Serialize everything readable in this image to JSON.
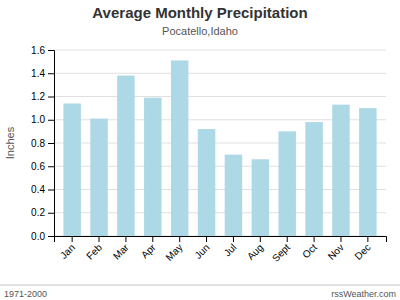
{
  "chart_data": {
    "type": "bar",
    "title": "Average Monthly Precipitation",
    "subtitle": "Pocatello,Idaho",
    "ylabel": "Inches",
    "categories": [
      "Jan",
      "Feb",
      "Mar",
      "Apr",
      "May",
      "Jun",
      "Jul",
      "Aug",
      "Sept",
      "Oct",
      "Nov",
      "Dec"
    ],
    "values": [
      1.14,
      1.01,
      1.38,
      1.19,
      1.51,
      0.92,
      0.7,
      0.66,
      0.9,
      0.98,
      1.13,
      1.1
    ],
    "color": "#add8e6",
    "ylim": [
      0.0,
      1.6
    ],
    "yticks": [
      {
        "value": 0,
        "label": "0.0"
      },
      0.2,
      0.4,
      0.6,
      0.8,
      {
        "value": 1,
        "label": "1.0"
      },
      1.2,
      1.4,
      1.6
    ],
    "grid": true,
    "annotations": [
      "1971-2000",
      "rssWeather.com"
    ]
  }
}
